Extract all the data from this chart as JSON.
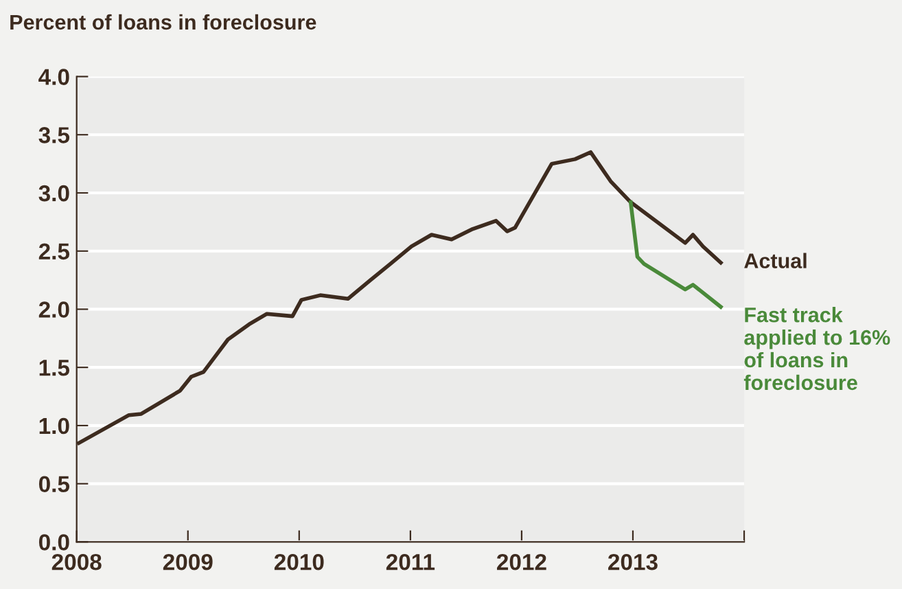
{
  "chart_data": {
    "type": "line",
    "title": "Percent of loans in foreclosure",
    "xlim": [
      2008,
      2014
    ],
    "xticks": [
      2008,
      2009,
      2010,
      2011,
      2012,
      2013,
      {
        "value": 2014,
        "label": null
      }
    ],
    "ylim": [
      0,
      4
    ],
    "yticks": [
      {
        "value": 0,
        "label": "0.0"
      },
      0.5,
      {
        "value": 1,
        "label": "1.0"
      },
      1.5,
      {
        "value": 2,
        "label": "2.0"
      },
      2.5,
      {
        "value": 3,
        "label": "3.0"
      },
      3.5,
      {
        "value": 4,
        "label": "4.0"
      }
    ],
    "grid": "y",
    "legend": false,
    "marker": "none",
    "line_style": "solid",
    "series": [
      {
        "name": "Actual",
        "color": "#3d2b1f",
        "x": [
          2008.02,
          2008.47,
          2008.58,
          2008.93,
          2009.03,
          2009.14,
          2009.36,
          2009.55,
          2009.71,
          2009.94,
          2010.02,
          2010.19,
          2010.44,
          2010.64,
          2010.82,
          2011.01,
          2011.19,
          2011.37,
          2011.56,
          2011.77,
          2011.87,
          2011.94,
          2012.27,
          2012.48,
          2012.62,
          2012.8,
          2012.98,
          2013.47,
          2013.54,
          2013.63,
          2013.79
        ],
        "values": [
          0.85,
          1.09,
          1.1,
          1.3,
          1.42,
          1.46,
          1.74,
          1.87,
          1.96,
          1.94,
          2.08,
          2.12,
          2.09,
          2.25,
          2.39,
          2.54,
          2.64,
          2.6,
          2.69,
          2.76,
          2.67,
          2.7,
          3.25,
          3.29,
          3.35,
          3.1,
          2.92,
          2.57,
          2.64,
          2.54,
          2.4
        ]
      },
      {
        "name": "Fast track applied to 16% of loans in foreclosure",
        "color": "#4a8a3a",
        "x": [
          2012.98,
          2013.04,
          2013.1,
          2013.47,
          2013.54,
          2013.79
        ],
        "values": [
          2.92,
          2.45,
          2.39,
          2.17,
          2.21,
          2.02
        ]
      }
    ]
  }
}
